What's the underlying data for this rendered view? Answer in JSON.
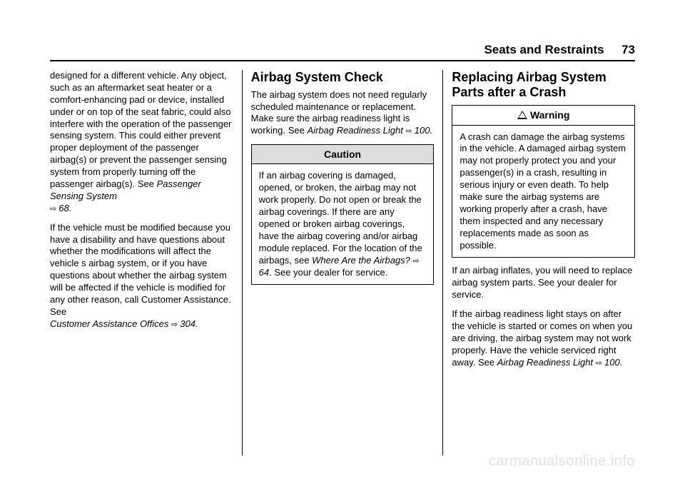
{
  "header": {
    "section": "Seats and Restraints",
    "page": "73"
  },
  "col1": {
    "p1a": "designed for a different vehicle. Any object, such as an aftermarket seat heater or a comfort-enhancing pad or device, installed under or on top of the seat fabric, could also interfere with the operation of the passenger sensing system. This could either prevent proper deployment of the passenger airbag(s) or prevent the passenger sensing system from properly turning off the passenger airbag(s). See ",
    "p1_ref": "Passenger Sensing System",
    "p1_link": "68.",
    "p2a": "If the vehicle must be modified because you have a disability and have questions about whether the modifications will affect the vehicle s airbag system, or if you have questions about whether the airbag system will be affected if the vehicle is modified for any other reason, call Customer Assistance. See ",
    "p2_ref": "Customer Assistance Offices ",
    "p2_link": "304."
  },
  "col2": {
    "h": "Airbag System Check",
    "p1a": "The airbag system does not need regularly scheduled maintenance or replacement. Make sure the airbag readiness light is working. See ",
    "p1_ref": "Airbag Readiness Light ",
    "p1_link": "100.",
    "caution": {
      "title": "Caution",
      "body_a": "If an airbag covering is damaged, opened, or broken, the airbag may not work properly. Do not open or break the airbag coverings. If there are any opened or broken airbag coverings, have the airbag covering and/or airbag module replaced. For the location of the airbags, see ",
      "body_ref": "Where Are the Airbags? ",
      "body_link": "64",
      "body_b": ". See your dealer for service."
    }
  },
  "col3": {
    "h": "Replacing Airbag System Parts after a Crash",
    "warning": {
      "title": "Warning",
      "body": "A crash can damage the airbag systems in the vehicle. A damaged airbag system may not properly protect you and your passenger(s) in a crash, resulting in serious injury or even death. To help make sure the airbag systems are working properly after a crash, have them inspected and any necessary replacements made as soon as possible."
    },
    "p1": "If an airbag inflates, you will need to replace airbag system parts. See your dealer for service.",
    "p2a": "If the airbag readiness light stays on after the vehicle is started or comes on when you are driving, the airbag system may not work properly. Have the vehicle serviced right away. See ",
    "p2_ref": "Airbag Readiness Light ",
    "p2_link": "100."
  },
  "watermark": "carmanualsonline.info"
}
